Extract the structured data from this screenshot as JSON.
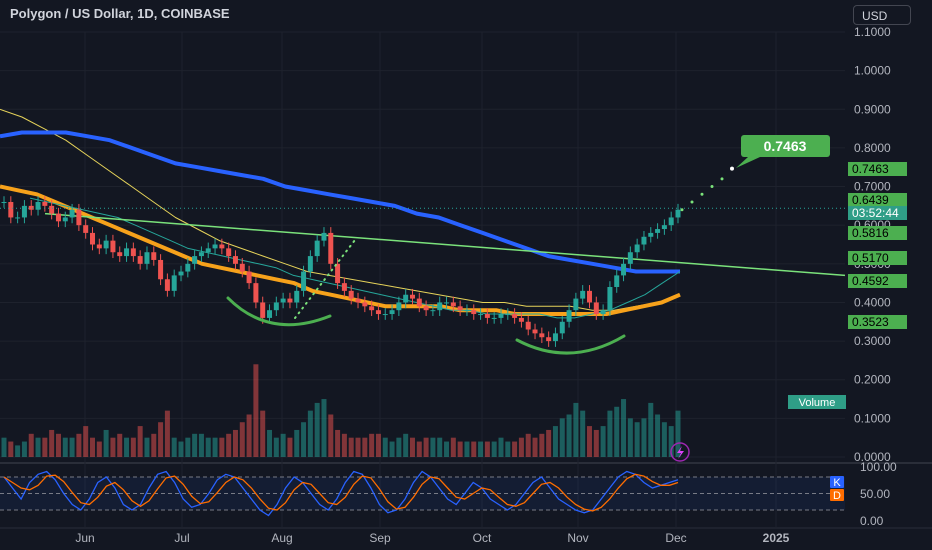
{
  "header": {
    "title": "Polygon / US Dollar, 1D, COINBASE",
    "currency_button": "USD"
  },
  "chart_data": {
    "type": "candlestick",
    "symbol": "Polygon / US Dollar",
    "interval": "1D",
    "exchange": "COINBASE",
    "price_axis": {
      "ticks": [
        "1.1000",
        "1.0000",
        "0.9000",
        "0.8000",
        "0.7000",
        "0.6000",
        "0.5000",
        "0.4000",
        "0.3000",
        "0.2000",
        "0.1000",
        "0.0000"
      ],
      "range": [
        0.0,
        1.12
      ]
    },
    "time_axis": {
      "ticks": [
        "Jun",
        "Jul",
        "Aug",
        "Sep",
        "Oct",
        "Nov",
        "Dec",
        "2025"
      ]
    },
    "price_labels": [
      {
        "value": "0.7463",
        "color": "#4caf50",
        "text_color": "#000000"
      },
      {
        "value": "0.6439",
        "color": "#4caf50",
        "text_color": "#000000"
      },
      {
        "value": "03:52:44",
        "color": "#2f9e87",
        "text_color": "#ffffff"
      },
      {
        "value": "0.5816",
        "color": "#4caf50",
        "text_color": "#000000"
      },
      {
        "value": "0.5170",
        "color": "#4caf50",
        "text_color": "#000000"
      },
      {
        "value": "0.4592",
        "color": "#4caf50",
        "text_color": "#000000"
      },
      {
        "value": "0.3523",
        "color": "#4caf50",
        "text_color": "#000000"
      }
    ],
    "target_callout": "0.7463",
    "volume_label": "Volume",
    "stoch_axis": {
      "ticks": [
        "100.00",
        "50.00",
        "0.00"
      ]
    },
    "stoch_badges": [
      {
        "text": "K",
        "color": "#2962ff"
      },
      {
        "text": "D",
        "color": "#ff6d00"
      }
    ],
    "price_series": [
      0.66,
      0.62,
      0.62,
      0.65,
      0.64,
      0.66,
      0.65,
      0.63,
      0.61,
      0.62,
      0.64,
      0.6,
      0.58,
      0.55,
      0.54,
      0.56,
      0.53,
      0.52,
      0.54,
      0.52,
      0.5,
      0.53,
      0.51,
      0.46,
      0.43,
      0.47,
      0.48,
      0.5,
      0.52,
      0.53,
      0.54,
      0.55,
      0.54,
      0.52,
      0.5,
      0.48,
      0.45,
      0.4,
      0.36,
      0.38,
      0.4,
      0.41,
      0.4,
      0.43,
      0.48,
      0.52,
      0.56,
      0.58,
      0.5,
      0.45,
      0.43,
      0.41,
      0.4,
      0.39,
      0.38,
      0.37,
      0.37,
      0.38,
      0.4,
      0.42,
      0.41,
      0.39,
      0.38,
      0.38,
      0.4,
      0.4,
      0.39,
      0.38,
      0.38,
      0.37,
      0.37,
      0.36,
      0.36,
      0.37,
      0.37,
      0.36,
      0.35,
      0.33,
      0.32,
      0.31,
      0.3,
      0.32,
      0.35,
      0.38,
      0.41,
      0.43,
      0.4,
      0.37,
      0.38,
      0.44,
      0.47,
      0.5,
      0.53,
      0.55,
      0.57,
      0.58,
      0.59,
      0.6,
      0.62,
      0.64
    ],
    "volume_series": [
      0.05,
      0.04,
      0.03,
      0.04,
      0.06,
      0.05,
      0.05,
      0.07,
      0.06,
      0.05,
      0.05,
      0.06,
      0.08,
      0.05,
      0.04,
      0.07,
      0.05,
      0.06,
      0.05,
      0.05,
      0.08,
      0.05,
      0.06,
      0.09,
      0.12,
      0.05,
      0.04,
      0.05,
      0.06,
      0.06,
      0.05,
      0.05,
      0.05,
      0.06,
      0.07,
      0.09,
      0.11,
      0.24,
      0.12,
      0.07,
      0.05,
      0.06,
      0.05,
      0.07,
      0.09,
      0.12,
      0.14,
      0.15,
      0.11,
      0.07,
      0.06,
      0.05,
      0.05,
      0.05,
      0.06,
      0.06,
      0.05,
      0.04,
      0.05,
      0.06,
      0.05,
      0.04,
      0.05,
      0.05,
      0.05,
      0.04,
      0.05,
      0.04,
      0.04,
      0.04,
      0.04,
      0.04,
      0.04,
      0.05,
      0.04,
      0.04,
      0.05,
      0.06,
      0.05,
      0.06,
      0.07,
      0.08,
      0.1,
      0.11,
      0.14,
      0.12,
      0.08,
      0.07,
      0.08,
      0.12,
      0.13,
      0.15,
      0.1,
      0.09,
      0.1,
      0.14,
      0.11,
      0.09,
      0.08,
      0.12
    ],
    "ma_fast": [
      0.67,
      0.66,
      0.65,
      0.64,
      0.63,
      0.62,
      0.6,
      0.58,
      0.56,
      0.54,
      0.53,
      0.52,
      0.51,
      0.5,
      0.49,
      0.47,
      0.46,
      0.45,
      0.44,
      0.43,
      0.42,
      0.41,
      0.4,
      0.39,
      0.38,
      0.38,
      0.37,
      0.37,
      0.37,
      0.37,
      0.36,
      0.36,
      0.37,
      0.38,
      0.4,
      0.42,
      0.45,
      0.48
    ],
    "ma_mid": [
      0.7,
      0.69,
      0.68,
      0.66,
      0.64,
      0.62,
      0.6,
      0.58,
      0.56,
      0.54,
      0.52,
      0.5,
      0.49,
      0.48,
      0.47,
      0.46,
      0.45,
      0.43,
      0.42,
      0.41,
      0.4,
      0.39,
      0.39,
      0.39,
      0.39,
      0.38,
      0.38,
      0.38,
      0.37,
      0.37,
      0.37,
      0.37,
      0.37,
      0.37,
      0.38,
      0.39,
      0.4,
      0.42
    ],
    "ma_slow": [
      0.83,
      0.84,
      0.84,
      0.84,
      0.83,
      0.82,
      0.8,
      0.78,
      0.76,
      0.75,
      0.74,
      0.73,
      0.72,
      0.7,
      0.69,
      0.68,
      0.67,
      0.66,
      0.65,
      0.63,
      0.62,
      0.6,
      0.58,
      0.56,
      0.54,
      0.52,
      0.51,
      0.5,
      0.49,
      0.48,
      0.48,
      0.48
    ],
    "ma_long": [
      0.9,
      0.88,
      0.85,
      0.82,
      0.78,
      0.74,
      0.7,
      0.66,
      0.62,
      0.59,
      0.56,
      0.54,
      0.52,
      0.5,
      0.48,
      0.47,
      0.46,
      0.45,
      0.44,
      0.43,
      0.42,
      0.41,
      0.4,
      0.4,
      0.39,
      0.39,
      0.39,
      0.38,
      0.38,
      0.39,
      0.4,
      0.42
    ],
    "trendline": {
      "from": 0.63,
      "to": 0.47
    },
    "projection_dots": [
      0.64,
      0.66,
      0.68,
      0.7,
      0.72,
      0.7463
    ],
    "stoch_k": [
      80,
      60,
      40,
      70,
      85,
      90,
      75,
      50,
      30,
      20,
      40,
      70,
      80,
      60,
      30,
      20,
      30,
      60,
      85,
      90,
      70,
      40,
      25,
      30,
      50,
      75,
      85,
      80,
      60,
      40,
      20,
      10,
      30,
      60,
      80,
      70,
      50,
      30,
      20,
      40,
      70,
      90,
      85,
      60,
      30,
      15,
      20,
      40,
      70,
      90,
      80,
      60,
      40,
      30,
      50,
      70,
      60,
      40,
      30,
      20,
      30,
      50,
      70,
      80,
      60,
      40,
      30,
      20,
      15,
      20,
      40,
      60,
      80,
      90,
      85,
      70,
      60,
      65,
      70,
      75
    ]
  }
}
